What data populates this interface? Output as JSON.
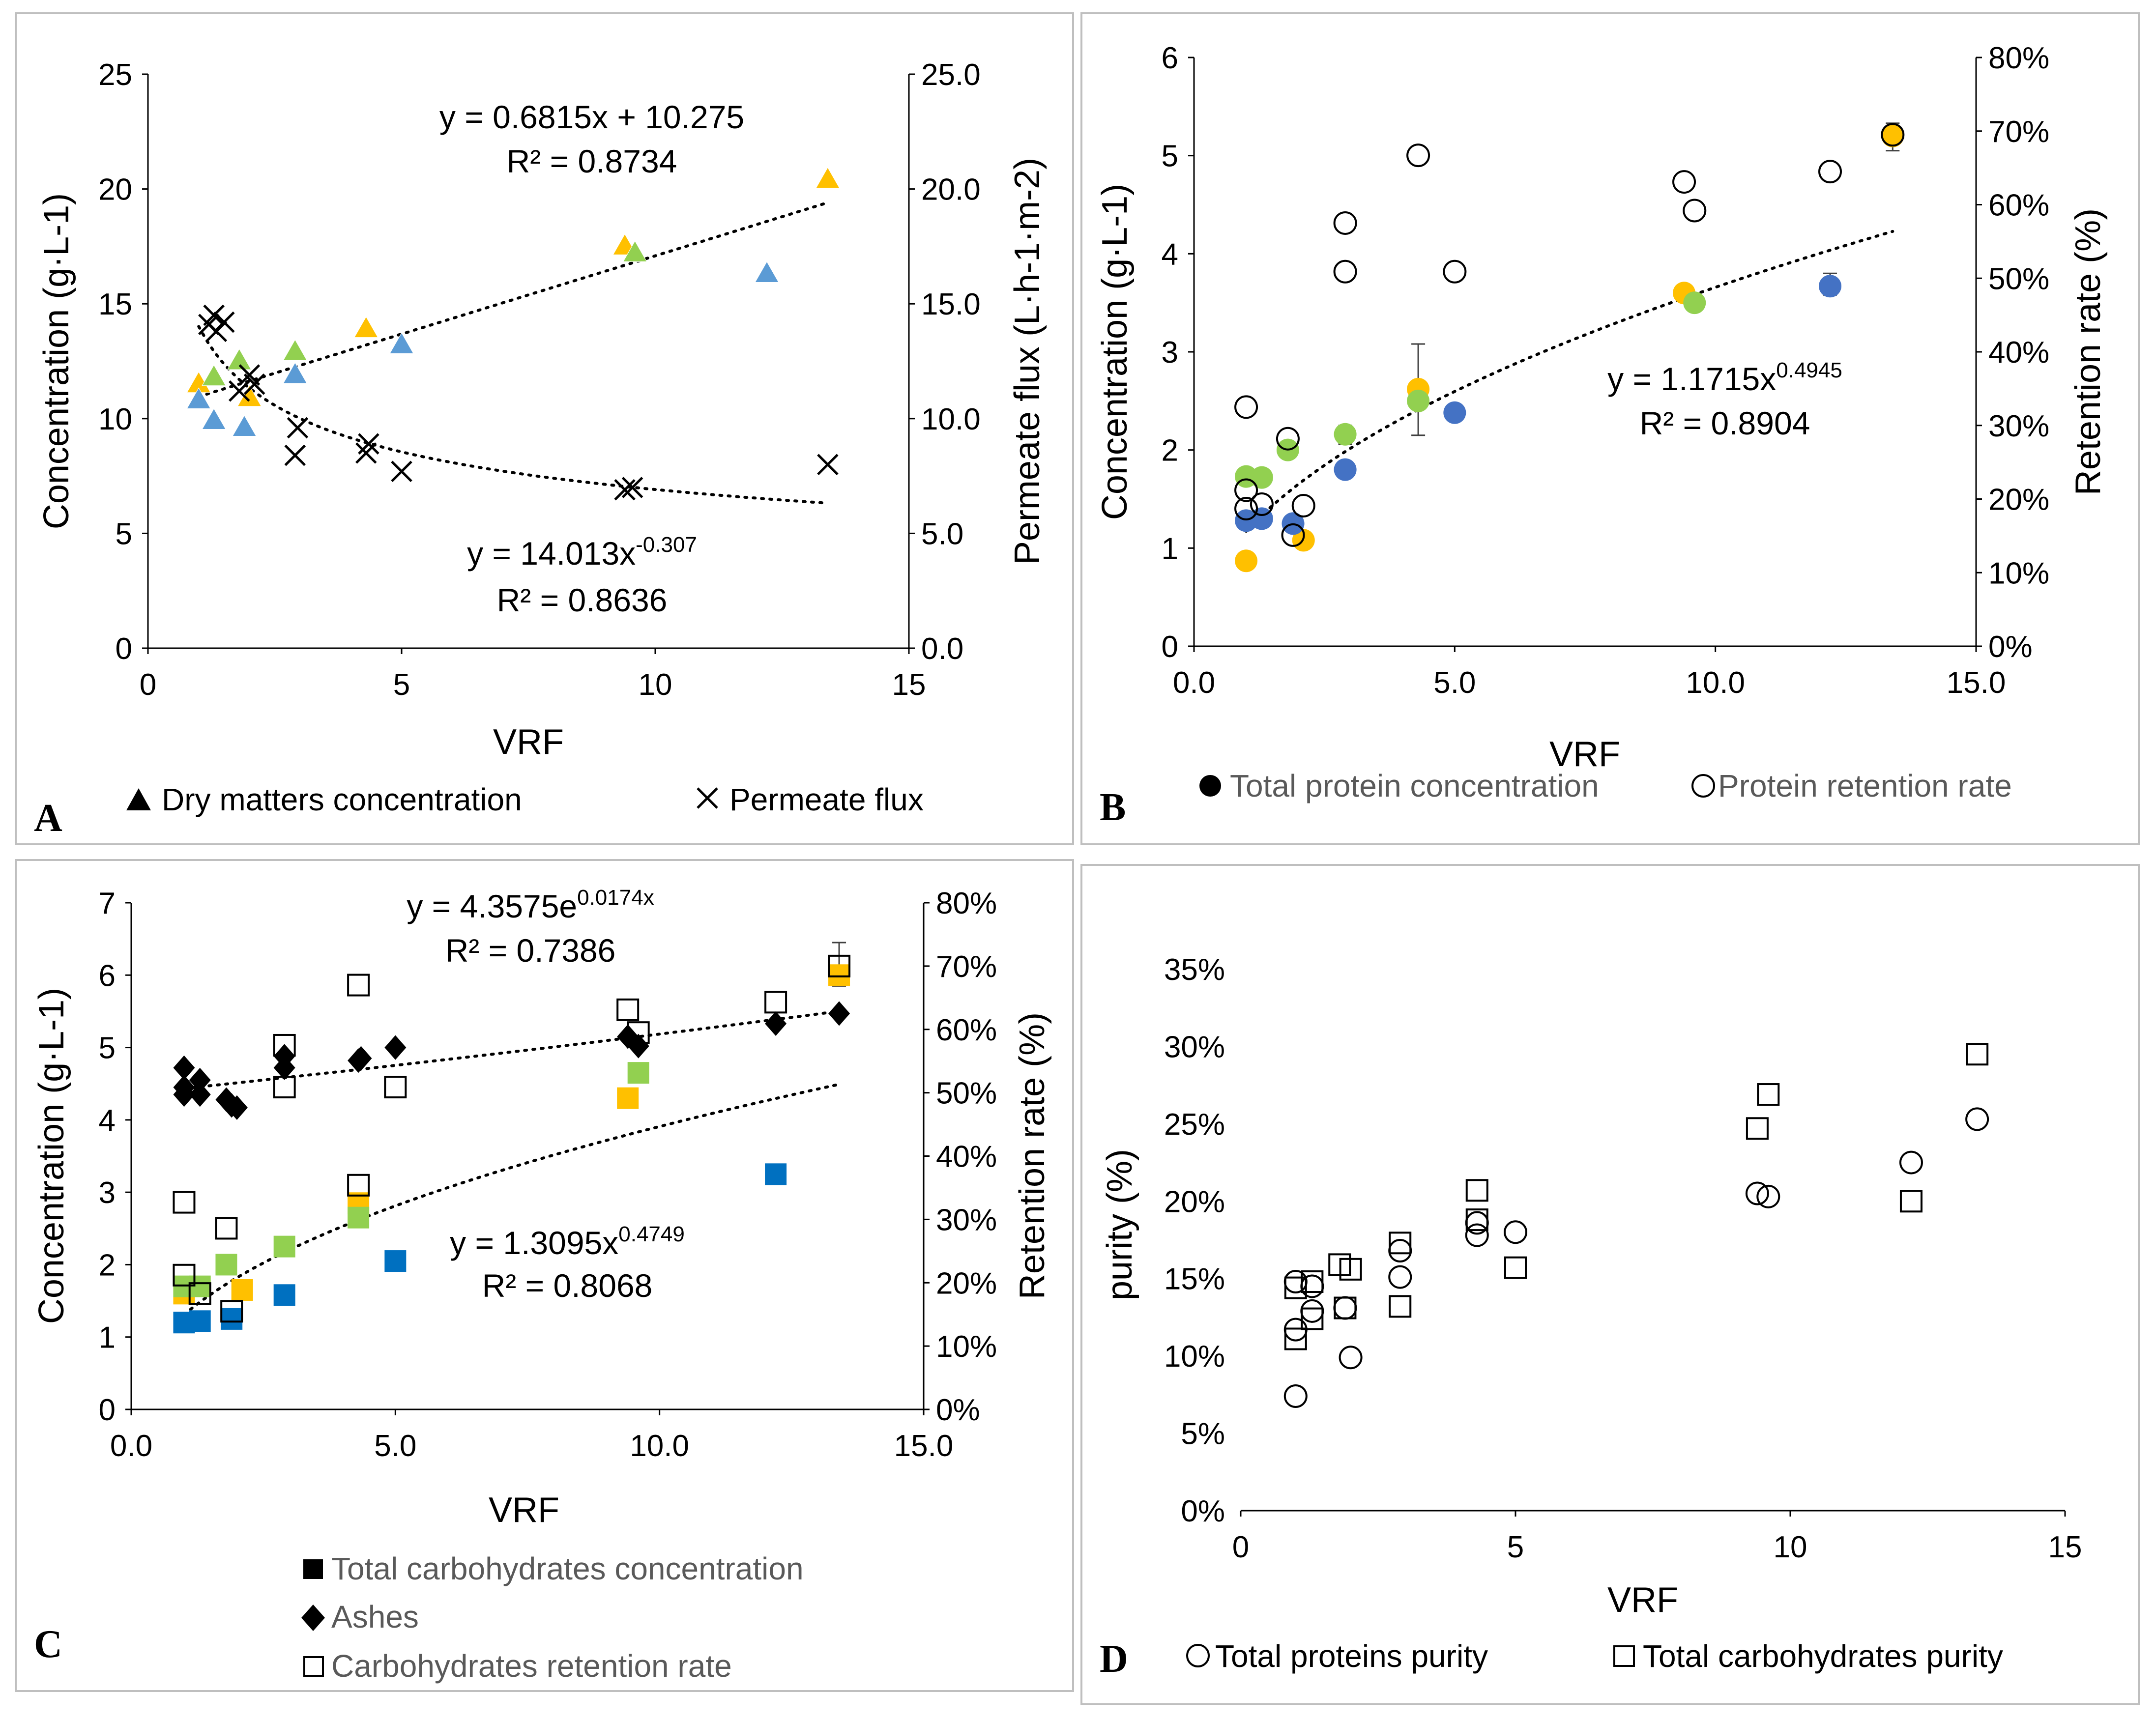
{
  "colors": {
    "yellow": "#FFC000",
    "green": "#92D050",
    "blue_a": "#5B9BD5",
    "blue_b": "#4472C4",
    "blue_c": "#0070C0",
    "black": "#000000",
    "gray": "#595959"
  },
  "chart_data": [
    {
      "panel": "A",
      "type": "scatter",
      "xlabel": "VRF",
      "ylabel": "Concentration (g·L-1)",
      "y2label": "Permeate flux (L·h-1·m-2)",
      "xlim": [
        0,
        15
      ],
      "ylim": [
        0,
        25
      ],
      "y2lim": [
        0,
        25
      ],
      "xticks": [
        "0",
        "5",
        "10",
        "15"
      ],
      "yticks": [
        "0",
        "5",
        "10",
        "15",
        "20",
        "25"
      ],
      "y2ticks": [
        "0.0",
        "5.0",
        "10.0",
        "15.0",
        "20.0",
        "25.0"
      ],
      "equations": [
        {
          "line1": "y = 0.6815x + 10.275",
          "line2": "R² = 0.8734"
        },
        {
          "prefix": "y = 14.013x",
          "exp": "-0.307",
          "line2": "R² = 0.8636"
        }
      ],
      "legend": [
        "Dry matters concentration",
        "Permeate flux"
      ],
      "series": [
        {
          "name": "Dry matters (yellow)",
          "marker": "triangle",
          "color": "yellow",
          "axis": "left",
          "x": [
            1.0,
            2.0,
            4.3,
            9.4,
            13.4
          ],
          "y": [
            11.5,
            10.9,
            13.9,
            17.5,
            20.4
          ]
        },
        {
          "name": "Dry matters (green)",
          "marker": "triangle",
          "color": "green",
          "axis": "left",
          "x": [
            1.3,
            1.8,
            2.9,
            9.6
          ],
          "y": [
            11.8,
            12.5,
            12.9,
            17.2
          ]
        },
        {
          "name": "Dry matters (blue)",
          "marker": "triangle",
          "color": "blue_a",
          "axis": "left",
          "x": [
            1.0,
            1.3,
            1.9,
            2.9,
            5.0,
            12.2
          ],
          "y": [
            10.8,
            9.9,
            9.6,
            11.9,
            13.2,
            16.3
          ]
        },
        {
          "name": "Permeate flux",
          "marker": "cross",
          "color": "black",
          "axis": "right",
          "x": [
            1.2,
            1.3,
            1.35,
            1.5,
            1.8,
            2.0,
            2.1,
            2.9,
            2.95,
            4.3,
            4.35,
            5.0,
            9.4,
            9.55,
            13.4
          ],
          "y": [
            14.1,
            14.5,
            13.8,
            14.2,
            11.2,
            11.9,
            11.5,
            8.4,
            9.6,
            8.5,
            8.9,
            7.7,
            6.9,
            7.0,
            8.0
          ]
        }
      ],
      "trendlines": [
        {
          "type": "linear",
          "a": 0.6815,
          "b": 10.275,
          "x": [
            1.0,
            13.4
          ],
          "axis": "left"
        },
        {
          "type": "power",
          "a": 14.013,
          "b": -0.307,
          "x": [
            1.0,
            13.4
          ],
          "axis": "right"
        }
      ]
    },
    {
      "panel": "B",
      "type": "scatter",
      "xlabel": "VRF",
      "ylabel": "Concentration (g·L-1)",
      "y2label": "Retention rate (%)",
      "xlim": [
        0,
        15
      ],
      "ylim": [
        0,
        6
      ],
      "y2lim": [
        0,
        80
      ],
      "xticks": [
        "0.0",
        "5.0",
        "10.0",
        "15.0"
      ],
      "yticks": [
        "0",
        "1",
        "2",
        "3",
        "4",
        "5",
        "6"
      ],
      "y2ticks": [
        "0%",
        "10%",
        "20%",
        "30%",
        "40%",
        "50%",
        "60%",
        "70%",
        "80%"
      ],
      "equations": [
        {
          "prefix": "y = 1.1715x",
          "exp": "0.4945",
          "line2": "R² = 0.8904"
        }
      ],
      "legend": [
        "Total protein concentration",
        "Protein retention rate"
      ],
      "series": [
        {
          "name": "Protein (yellow)",
          "marker": "circle",
          "color": "yellow",
          "axis": "left",
          "x": [
            1.0,
            2.1,
            4.3,
            9.4,
            13.4
          ],
          "y": [
            0.87,
            1.08,
            2.62,
            3.6,
            5.2
          ]
        },
        {
          "name": "Protein (green)",
          "marker": "circle",
          "color": "green",
          "axis": "left",
          "x": [
            1.0,
            1.3,
            1.8,
            2.9,
            4.3,
            9.6
          ],
          "y": [
            1.73,
            1.72,
            2.0,
            2.16,
            2.5,
            3.5
          ]
        },
        {
          "name": "Protein (blue)",
          "marker": "circle",
          "color": "blue_b",
          "axis": "left",
          "x": [
            1.0,
            1.3,
            1.9,
            2.9,
            5.0,
            12.2
          ],
          "y": [
            1.28,
            1.3,
            1.25,
            1.8,
            2.38,
            3.67
          ]
        },
        {
          "name": "Protein retention rate",
          "marker": "open-circle",
          "color": "black",
          "axis": "right",
          "x": [
            1.0,
            1.0,
            1.0,
            1.3,
            1.8,
            1.9,
            2.1,
            2.9,
            2.9,
            4.3,
            5.0,
            9.4,
            9.6,
            12.2,
            13.4
          ],
          "y": [
            32.5,
            21.2,
            18.7,
            19.3,
            28.2,
            15.1,
            19.1,
            57.5,
            50.9,
            66.7,
            50.9,
            63.1,
            59.2,
            64.5,
            69.5
          ]
        }
      ],
      "error_bars": [
        {
          "x": 4.3,
          "y": 2.62,
          "low": 2.15,
          "high": 3.08
        },
        {
          "x": 13.4,
          "y": 5.2,
          "low": 5.05,
          "high": 5.33
        },
        {
          "x": 12.2,
          "y": 3.67,
          "low": 3.58,
          "high": 3.8
        },
        {
          "x": 1.8,
          "y": 2.0,
          "low": 1.92,
          "high": 2.08
        },
        {
          "x": 2.9,
          "y": 2.16,
          "low": 2.06,
          "high": 2.25
        }
      ],
      "trendlines": [
        {
          "type": "power",
          "a": 1.1715,
          "b": 0.4945,
          "x": [
            1.0,
            13.4
          ],
          "axis": "left"
        }
      ]
    },
    {
      "panel": "C",
      "type": "scatter",
      "xlabel": "VRF",
      "ylabel": "Concentration (g·L-1)",
      "y2label": "Retention rate (%)",
      "xlim": [
        0,
        15
      ],
      "ylim": [
        0,
        7
      ],
      "y2lim": [
        0,
        80
      ],
      "xticks": [
        "0.0",
        "5.0",
        "10.0",
        "15.0"
      ],
      "yticks": [
        "0",
        "1",
        "2",
        "3",
        "4",
        "5",
        "6",
        "7"
      ],
      "y2ticks": [
        "0%",
        "10%",
        "20%",
        "30%",
        "40%",
        "50%",
        "60%",
        "70%",
        "80%"
      ],
      "equations": [
        {
          "prefix": "y = 4.3575e",
          "exp": "0.0174x",
          "line2": "R² = 0.7386"
        },
        {
          "prefix": "y = 1.3095x",
          "exp": "0.4749",
          "line2": "R² = 0.8068"
        }
      ],
      "legend": [
        "Total carbohydrates concentration",
        "Ashes",
        "Carbohydrates retention rate"
      ],
      "series": [
        {
          "name": "Carbohydrates (yellow)",
          "marker": "square",
          "color": "yellow",
          "axis": "left",
          "x": [
            1.0,
            2.1,
            4.3,
            9.4,
            13.4
          ],
          "y": [
            1.6,
            1.65,
            2.85,
            4.3,
            6.0
          ]
        },
        {
          "name": "Carbohydrates (green)",
          "marker": "square",
          "color": "green",
          "axis": "left",
          "x": [
            1.0,
            1.3,
            1.8,
            2.9,
            4.3,
            9.6
          ],
          "y": [
            1.7,
            1.7,
            2.0,
            2.25,
            2.65,
            4.65
          ]
        },
        {
          "name": "Carbohydrates (blue)",
          "marker": "square",
          "color": "blue_c",
          "axis": "left",
          "x": [
            1.0,
            1.3,
            1.9,
            2.9,
            5.0,
            12.2
          ],
          "y": [
            1.2,
            1.22,
            1.25,
            1.58,
            2.05,
            3.25
          ]
        },
        {
          "name": "Ashes",
          "marker": "diamond",
          "color": "black",
          "axis": "left",
          "x": [
            1.0,
            1.0,
            1.0,
            1.3,
            1.3,
            1.8,
            1.9,
            2.0,
            2.9,
            2.9,
            4.3,
            4.35,
            5.0,
            9.4,
            9.6,
            12.2,
            13.4
          ],
          "y": [
            4.72,
            4.45,
            4.35,
            4.55,
            4.35,
            4.28,
            4.2,
            4.17,
            4.88,
            4.72,
            4.82,
            4.85,
            5.0,
            5.15,
            5.02,
            5.33,
            5.47
          ]
        },
        {
          "name": "Carbohydrates retention rate",
          "marker": "open-square",
          "color": "black",
          "axis": "right",
          "x": [
            1.0,
            1.0,
            1.3,
            1.8,
            1.9,
            2.9,
            2.9,
            4.3,
            4.3,
            5.0,
            9.4,
            9.6,
            12.2,
            13.4
          ],
          "y": [
            32.7,
            21.2,
            18.3,
            28.6,
            15.5,
            57.5,
            50.9,
            67.0,
            35.4,
            50.9,
            63.1,
            59.5,
            64.3,
            70.0
          ]
        }
      ],
      "error_bars": [
        {
          "x": 13.4,
          "y": 6.0,
          "low": 5.85,
          "high": 6.45
        }
      ],
      "trendlines": [
        {
          "type": "exponential",
          "a": 4.3575,
          "b": 0.0174,
          "x": [
            1.0,
            13.4
          ],
          "axis": "left"
        },
        {
          "type": "power",
          "a": 1.3095,
          "b": 0.4749,
          "x": [
            1.0,
            13.4
          ],
          "axis": "left"
        }
      ]
    },
    {
      "panel": "D",
      "type": "scatter",
      "xlabel": "VRF",
      "ylabel": "purity (%)",
      "xlim": [
        0,
        15
      ],
      "ylim": [
        0,
        35
      ],
      "xticks": [
        "0",
        "5",
        "10",
        "15"
      ],
      "yticks": [
        "0%",
        "5%",
        "10%",
        "15%",
        "20%",
        "25%",
        "30%",
        "35%"
      ],
      "legend": [
        "Total proteins purity",
        "Total carbohydrates purity"
      ],
      "series": [
        {
          "name": "Total proteins purity",
          "marker": "open-circle",
          "color": "black",
          "x": [
            1.0,
            1.0,
            1.0,
            1.3,
            1.3,
            1.9,
            2.0,
            2.9,
            2.9,
            4.3,
            4.3,
            5.0,
            9.4,
            9.6,
            12.2,
            13.4
          ],
          "y": [
            7.4,
            11.7,
            14.8,
            12.9,
            14.5,
            13.1,
            9.9,
            15.1,
            16.8,
            17.8,
            18.6,
            18.0,
            20.5,
            20.3,
            22.5,
            25.3
          ]
        },
        {
          "name": "Total carbohydrates purity",
          "marker": "open-square",
          "color": "black",
          "x": [
            1.0,
            1.0,
            1.3,
            1.3,
            1.8,
            1.9,
            2.0,
            2.9,
            2.9,
            4.3,
            4.3,
            5.0,
            9.4,
            9.6,
            12.2,
            13.4
          ],
          "y": [
            11.1,
            14.4,
            12.4,
            14.8,
            15.9,
            13.1,
            15.6,
            13.2,
            17.3,
            18.8,
            20.7,
            15.7,
            24.7,
            26.9,
            20.0,
            29.5
          ]
        }
      ]
    }
  ]
}
